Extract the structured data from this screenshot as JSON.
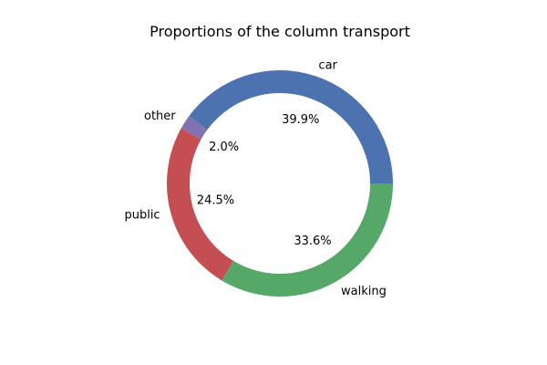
{
  "chart_data": {
    "type": "pie",
    "title": "Proportions of the column transport",
    "categories": [
      "car",
      "other",
      "public",
      "walking"
    ],
    "values": [
      39.9,
      2.0,
      24.5,
      33.6
    ],
    "percent_labels": [
      "39.9%",
      "2.0%",
      "24.5%",
      "33.6%"
    ],
    "colors": [
      "#4c72b0",
      "#8172b2",
      "#c44e52",
      "#55a868"
    ],
    "donut": true,
    "start_angle": "3 o'clock",
    "direction": "counterclockwise",
    "legend": "none"
  }
}
